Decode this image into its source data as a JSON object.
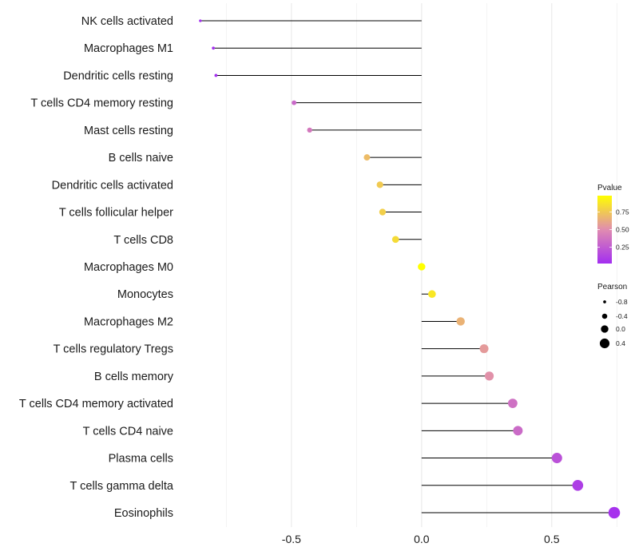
{
  "chart_data": {
    "type": "lollipop",
    "categories": [
      "NK cells activated",
      "Macrophages M1",
      "Dendritic cells resting",
      "T cells CD4 memory resting",
      "Mast cells resting",
      "B cells naive",
      "Dendritic cells activated",
      "T cells follicular helper",
      "T cells CD8",
      "Macrophages M0",
      "Monocytes",
      "Macrophages M2",
      "T cells regulatory  Tregs ",
      "B cells memory",
      "T cells CD4 memory activated",
      "T cells CD4 naive",
      "Plasma cells",
      "T cells gamma delta",
      "Eosinophils"
    ],
    "values": [
      -0.85,
      -0.8,
      -0.79,
      -0.49,
      -0.43,
      -0.21,
      -0.16,
      -0.15,
      -0.1,
      0.0,
      0.04,
      0.15,
      0.24,
      0.26,
      0.35,
      0.37,
      0.52,
      0.6,
      0.74
    ],
    "pvalues": [
      0.02,
      0.03,
      0.03,
      0.32,
      0.4,
      0.7,
      0.76,
      0.78,
      0.83,
      1.0,
      0.88,
      0.66,
      0.56,
      0.52,
      0.36,
      0.33,
      0.2,
      0.1,
      0.04
    ],
    "xlim": [
      -0.92,
      0.78
    ],
    "x_ticks": [
      -0.5,
      0.0,
      0.5
    ],
    "x_tick_labels": [
      "-0.5",
      "0.0",
      "0.5"
    ],
    "xlabel": "",
    "ylabel": "",
    "grid": true,
    "legend_color": {
      "title": "Pvalue",
      "range": [
        0.02,
        0.98
      ],
      "ticks": [
        0.75,
        0.5,
        0.25
      ],
      "tick_labels": [
        "0.75",
        "0.50",
        "0.25"
      ],
      "low_color": "#a32ef0",
      "mid_color": "#e08cb0",
      "high_color": "#ffff00"
    },
    "legend_size": {
      "title": "Pearson",
      "values": [
        -0.8,
        -0.4,
        0.0,
        0.4
      ],
      "labels": [
        "-0.8",
        "-0.4",
        "0.0",
        "0.4"
      ]
    },
    "colors": {
      "stem": "#000000",
      "grid": "#ebebeb",
      "text": "#1a1a1a"
    }
  }
}
